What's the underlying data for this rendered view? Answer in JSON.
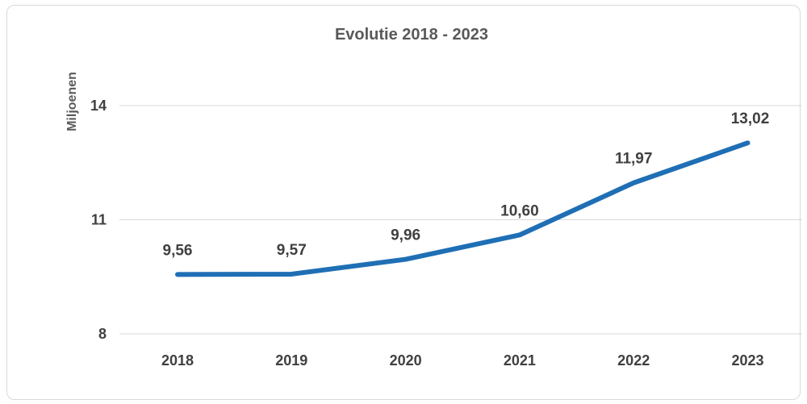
{
  "chart_data": {
    "type": "line",
    "title": "Evolutie 2018 - 2023",
    "xlabel": "",
    "ylabel": "Miljoenen",
    "categories": [
      "2018",
      "2019",
      "2020",
      "2021",
      "2022",
      "2023"
    ],
    "series": [
      {
        "values": [
          9.56,
          9.57,
          9.96,
          10.6,
          11.97,
          13.02
        ],
        "data_labels": [
          "9,56",
          "9,57",
          "9,96",
          "10,60",
          "11,97",
          "13,02"
        ],
        "color": "#1f6fb5"
      }
    ],
    "ylim": [
      8,
      14
    ],
    "yticks": [
      8,
      11,
      14
    ],
    "ytick_labels": [
      "8",
      "11",
      "14"
    ],
    "grid": true,
    "legend": "none"
  }
}
